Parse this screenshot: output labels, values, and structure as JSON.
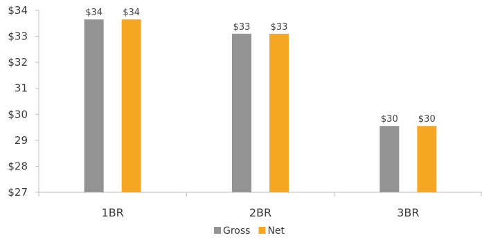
{
  "chart_data": {
    "type": "bar",
    "categories": [
      "1BR",
      "2BR",
      "3BR"
    ],
    "series": [
      {
        "name": "Gross",
        "values": [
          33.65,
          33.1,
          29.55
        ],
        "labels": [
          "$34",
          "$33",
          "$30"
        ],
        "color": "#939393"
      },
      {
        "name": "Net",
        "values": [
          33.65,
          33.1,
          29.55
        ],
        "labels": [
          "$34",
          "$33",
          "$30"
        ],
        "color": "#f5a623"
      }
    ],
    "ylim": [
      27,
      34
    ],
    "y_ticks": [
      27,
      28,
      29,
      30,
      31,
      32,
      33,
      34
    ],
    "y_tick_labels": [
      "$27",
      "$28",
      "29",
      "$30",
      "31",
      "$32",
      "$33",
      "$34"
    ],
    "legend": {
      "position": "bottom"
    },
    "grid": false,
    "axis_color": "#bfbfbf"
  }
}
